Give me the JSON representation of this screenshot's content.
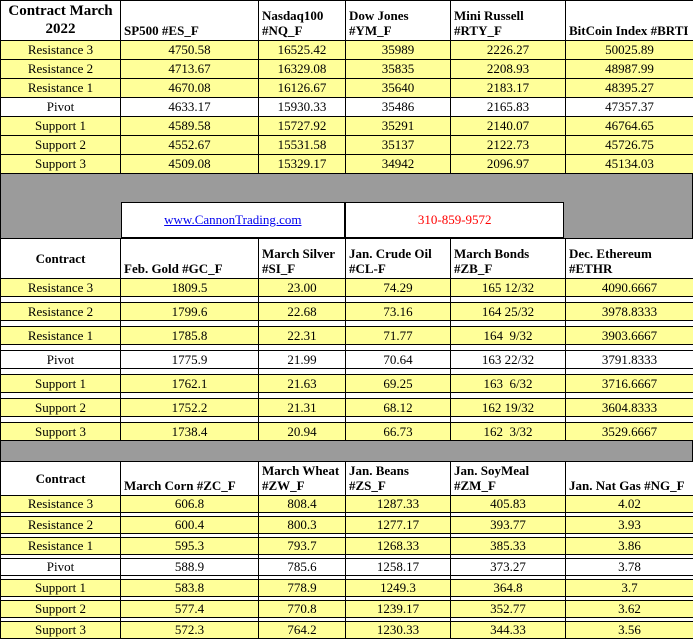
{
  "colors": {
    "yellow": "#FFFF99",
    "gray": "#9B9B9B",
    "link_blue": "#0000EE",
    "phone_red": "#FF0000"
  },
  "separator": {
    "link": "www.CannonTrading.com",
    "phone": "310-859-9572"
  },
  "row_labels": [
    "Resistance 3",
    "Resistance 2",
    "Resistance 1",
    "Pivot",
    "Support 1",
    "Support 2",
    "Support 3"
  ],
  "sections": [
    {
      "name": "stock-indices",
      "corner": "Contract March\n2022",
      "columns": [
        "SP500 #ES_F",
        "Nasdaq100\n#NQ_F",
        "Dow Jones\n#YM_F",
        "Mini Russell\n#RTY_F",
        "BitCoin Index #BRTI"
      ],
      "rows": [
        [
          "4750.58",
          "16525.42",
          "35989",
          "2226.27",
          "50025.89"
        ],
        [
          "4713.67",
          "16329.08",
          "35835",
          "2208.93",
          "48987.99"
        ],
        [
          "4670.08",
          "16126.67",
          "35640",
          "2183.17",
          "48395.27"
        ],
        [
          "4633.17",
          "15930.33",
          "35486",
          "2165.83",
          "47357.37"
        ],
        [
          "4589.58",
          "15727.92",
          "35291",
          "2140.07",
          "46764.65"
        ],
        [
          "4552.67",
          "15531.58",
          "35137",
          "2122.73",
          "45726.75"
        ],
        [
          "4509.08",
          "15329.17",
          "34942",
          "2096.97",
          "45134.03"
        ]
      ]
    },
    {
      "name": "metals-energy-bonds",
      "corner": "Contract",
      "columns": [
        "Feb. Gold #GC_F",
        "March Silver\n#SI_F",
        "Jan. Crude Oil\n#CL-F",
        "March Bonds\n#ZB_F",
        "Dec. Ethereum\n#ETHR"
      ],
      "rows": [
        [
          "1809.5",
          "23.00",
          "74.29",
          "165 12/32",
          "4090.6667"
        ],
        [
          "1799.6",
          "22.68",
          "73.16",
          "164 25/32",
          "3978.8333"
        ],
        [
          "1785.8",
          "22.31",
          "71.77",
          "164  9/32",
          "3903.6667"
        ],
        [
          "1775.9",
          "21.99",
          "70.64",
          "163 22/32",
          "3791.8333"
        ],
        [
          "1762.1",
          "21.63",
          "69.25",
          "163  6/32",
          "3716.6667"
        ],
        [
          "1752.2",
          "21.31",
          "68.12",
          "162 19/32",
          "3604.8333"
        ],
        [
          "1738.4",
          "20.94",
          "66.73",
          "162  3/32",
          "3529.6667"
        ]
      ]
    },
    {
      "name": "grains",
      "corner": "Contract",
      "columns": [
        "March Corn #ZC_F",
        "March Wheat\n#ZW_F",
        "Jan. Beans #ZS_F",
        "Jan. SoyMeal\n#ZM_F",
        "Jan. Nat Gas #NG_F"
      ],
      "rows": [
        [
          "606.8",
          "808.4",
          "1287.33",
          "405.83",
          "4.02"
        ],
        [
          "600.4",
          "800.3",
          "1277.17",
          "393.77",
          "3.93"
        ],
        [
          "595.3",
          "793.7",
          "1268.33",
          "385.33",
          "3.86"
        ],
        [
          "588.9",
          "785.6",
          "1258.17",
          "373.27",
          "3.78"
        ],
        [
          "583.8",
          "778.9",
          "1249.3",
          "364.8",
          "3.7"
        ],
        [
          "577.4",
          "770.8",
          "1239.17",
          "352.77",
          "3.62"
        ],
        [
          "572.3",
          "764.2",
          "1230.33",
          "344.33",
          "3.56"
        ]
      ]
    }
  ]
}
